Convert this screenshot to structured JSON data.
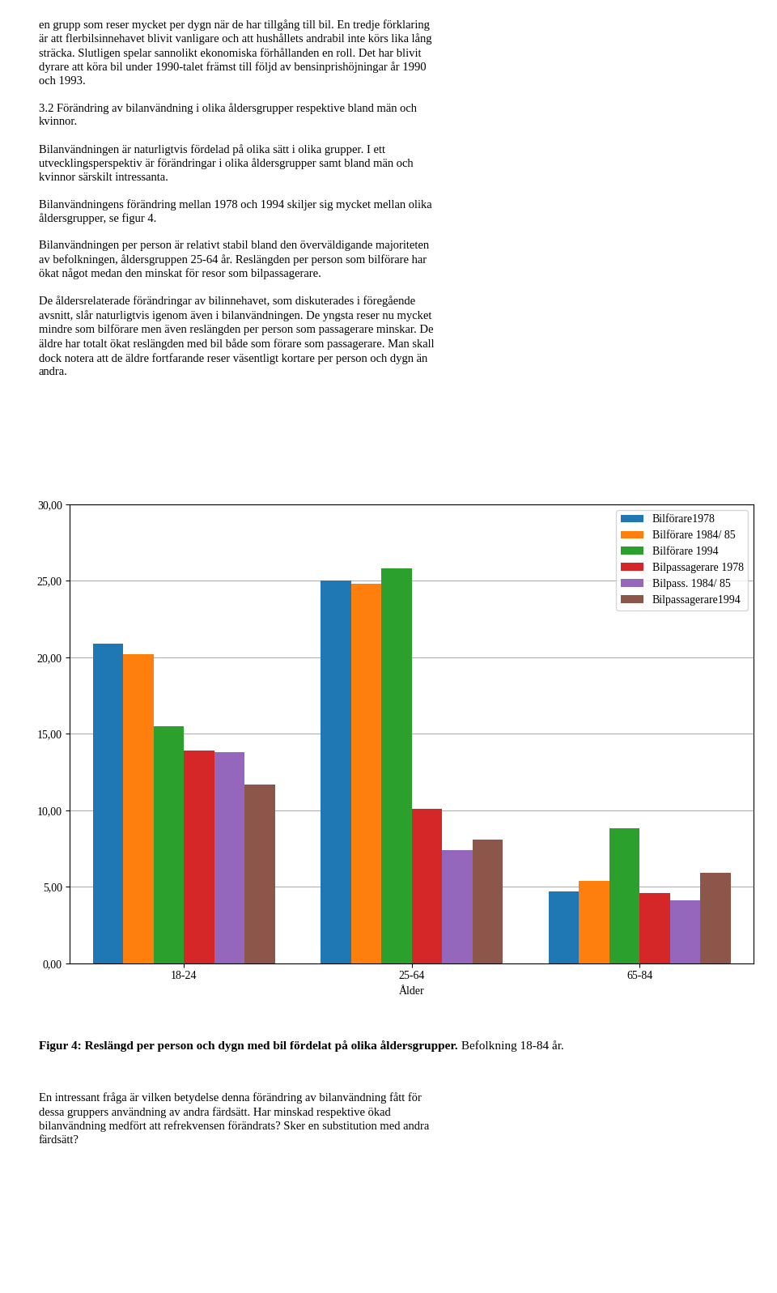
{
  "chart_data": {
    "type": "bar",
    "categories": [
      "18-24",
      "25-64",
      "65-84"
    ],
    "series": [
      {
        "name": "Bilförare1978",
        "values": [
          20.9,
          25.0,
          4.7
        ]
      },
      {
        "name": "Bilförare 1984/ 85",
        "values": [
          20.2,
          24.8,
          5.4
        ]
      },
      {
        "name": "Bilförare 1994",
        "values": [
          15.5,
          25.8,
          8.8
        ]
      },
      {
        "name": "Bilpassagerare 1978",
        "values": [
          13.9,
          10.1,
          4.6
        ]
      },
      {
        "name": "Bilpass. 1984/ 85",
        "values": [
          13.8,
          7.4,
          4.1
        ]
      },
      {
        "name": "Bilpassagerare1994",
        "values": [
          11.7,
          8.1,
          5.9
        ]
      }
    ],
    "x_label": "Ålder",
    "ylim": [
      0,
      30
    ],
    "yticks": [
      {
        "value": 0,
        "label": "0,00"
      },
      {
        "value": 5,
        "label": "5,00"
      },
      {
        "value": 10,
        "label": "10,00"
      },
      {
        "value": 15,
        "label": "15,00"
      },
      {
        "value": 20,
        "label": "20,00"
      },
      {
        "value": 25,
        "label": "25,00"
      },
      {
        "value": 30,
        "label": "30,00"
      }
    ],
    "grid": true,
    "legend": "upper right",
    "annotations": [
      "en grupp som reser mycket per dygn när de har tillgång till bil. En tredje förklaring\när att flerbilsinnehavet blivit vanligare och att hushållets andrabil inte körs lika lång\nsträcka. Slutligen spelar sannolikt ekonomiska förhållanden en roll. Det har blivit\ndyrare att köra bil under 1990-talet främst till följd av bensinprishöjningar år 1990\noch 1993.\n\n3.2 Förändring av bilanvändning i olika åldersgrupper respektive bland män och\nkvinnor.\n\nBilanvändningen är naturligtvis fördelad på olika sätt i olika grupper. I ett\nutvecklingsperspektiv är förändringar i olika åldersgrupper samt bland män och\nkvinnor särskilt intressanta.\n\nBilanvändningens förändring mellan 1978 och 1994 skiljer sig mycket mellan olika\nåldersgrupper, se figur 4.\n\nBilanvändningen per person är relativt stabil bland den överväldigande majoriteten\nav befolkningen, åldersgruppen 25-64 år. Reslängden per person som bilförare har\nökat något medan den minskat för resor som bilpassagerare.\n\nDe åldersrelaterade förändringar av bilinnehavet, som diskuterades i föregående\navsnitt, slår naturligtvis igenom även i bilanvändningen. De yngsta reser nu mycket\nmindre som bilförare men även reslängden per person som passagerare minskar. De\näldre har totalt ökat reslängden med bil både som förare som passagerare. Man skall\ndock notera att de äldre fortfarande reser väsentligt kortare per person och dygn än\nandra.",
      "Figur 4: Reslängd per person och dygn med bil fördelat på olika åldersgrupper.",
      " Befolkning 18-84 år.",
      "En intressant fråga är vilken betydelse denna förändring av bilanvändning fått för\ndessa gruppers användning av andra färdsätt. Har minskad respektive ökad\nbilanvändning medfört att refrekvensen förändrats? Sker en substitution med andra\nfärdsätt?"
    ]
  }
}
